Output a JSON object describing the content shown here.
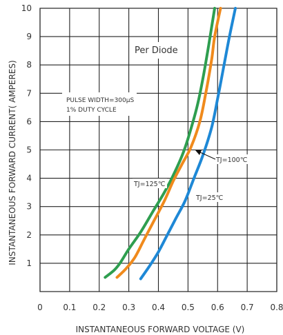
{
  "chart_data": {
    "type": "line",
    "title": "",
    "xlabel": "INSTANTANEOUS FORWARD VOLTAGE (V)",
    "ylabel": "INSTANTANEOUS FORWARD CURRENT( AMPERES)",
    "xlim": [
      0,
      0.8
    ],
    "ylim": [
      0,
      10
    ],
    "x_ticks": [
      "0",
      "0.1",
      "0.2",
      "0.3",
      "0.4",
      "0.5",
      "0.6",
      "0.7",
      "0.8"
    ],
    "y_ticks": [
      "1",
      "2",
      "3",
      "4",
      "5",
      "6",
      "7",
      "8",
      "9",
      "10"
    ],
    "grid": true,
    "annotations": {
      "per_diode": "Per Diode",
      "pulse_line1": "PULSE WIDTH=300μS",
      "pulse_line2": "1% DUTY CYCLE"
    },
    "series": [
      {
        "name": "TJ=125℃",
        "color": "#2e9e4f",
        "points": [
          [
            0.22,
            0.5
          ],
          [
            0.25,
            0.75
          ],
          [
            0.27,
            1.0
          ],
          [
            0.3,
            1.5
          ],
          [
            0.34,
            2.1
          ],
          [
            0.38,
            2.8
          ],
          [
            0.42,
            3.5
          ],
          [
            0.45,
            4.1
          ],
          [
            0.48,
            4.8
          ],
          [
            0.5,
            5.4
          ],
          [
            0.53,
            6.5
          ],
          [
            0.55,
            7.5
          ],
          [
            0.57,
            8.7
          ],
          [
            0.59,
            10.0
          ]
        ]
      },
      {
        "name": "TJ=100℃",
        "color": "#f08a1c",
        "points": [
          [
            0.26,
            0.5
          ],
          [
            0.29,
            0.8
          ],
          [
            0.32,
            1.2
          ],
          [
            0.35,
            1.8
          ],
          [
            0.38,
            2.4
          ],
          [
            0.42,
            3.2
          ],
          [
            0.45,
            3.9
          ],
          [
            0.48,
            4.5
          ],
          [
            0.51,
            5.1
          ],
          [
            0.54,
            6.0
          ],
          [
            0.56,
            7.0
          ],
          [
            0.58,
            8.2
          ],
          [
            0.59,
            9.0
          ],
          [
            0.61,
            10.0
          ]
        ]
      },
      {
        "name": "TJ=25℃",
        "color": "#1e88d6",
        "points": [
          [
            0.34,
            0.45
          ],
          [
            0.37,
            0.9
          ],
          [
            0.4,
            1.4
          ],
          [
            0.43,
            2.0
          ],
          [
            0.46,
            2.6
          ],
          [
            0.49,
            3.2
          ],
          [
            0.52,
            4.0
          ],
          [
            0.55,
            4.8
          ],
          [
            0.58,
            5.8
          ],
          [
            0.6,
            6.8
          ],
          [
            0.62,
            7.9
          ],
          [
            0.64,
            9.0
          ],
          [
            0.66,
            10.0
          ]
        ]
      }
    ],
    "series_labels": [
      {
        "series": "TJ=125℃",
        "text": "TJ=125℃",
        "color": "#2e9e4f"
      },
      {
        "series": "TJ=100℃",
        "text": "TJ=100℃",
        "color": "#f08a1c"
      },
      {
        "series": "TJ=25℃",
        "text": "TJ=25℃",
        "color": "#1e88d6"
      }
    ]
  }
}
